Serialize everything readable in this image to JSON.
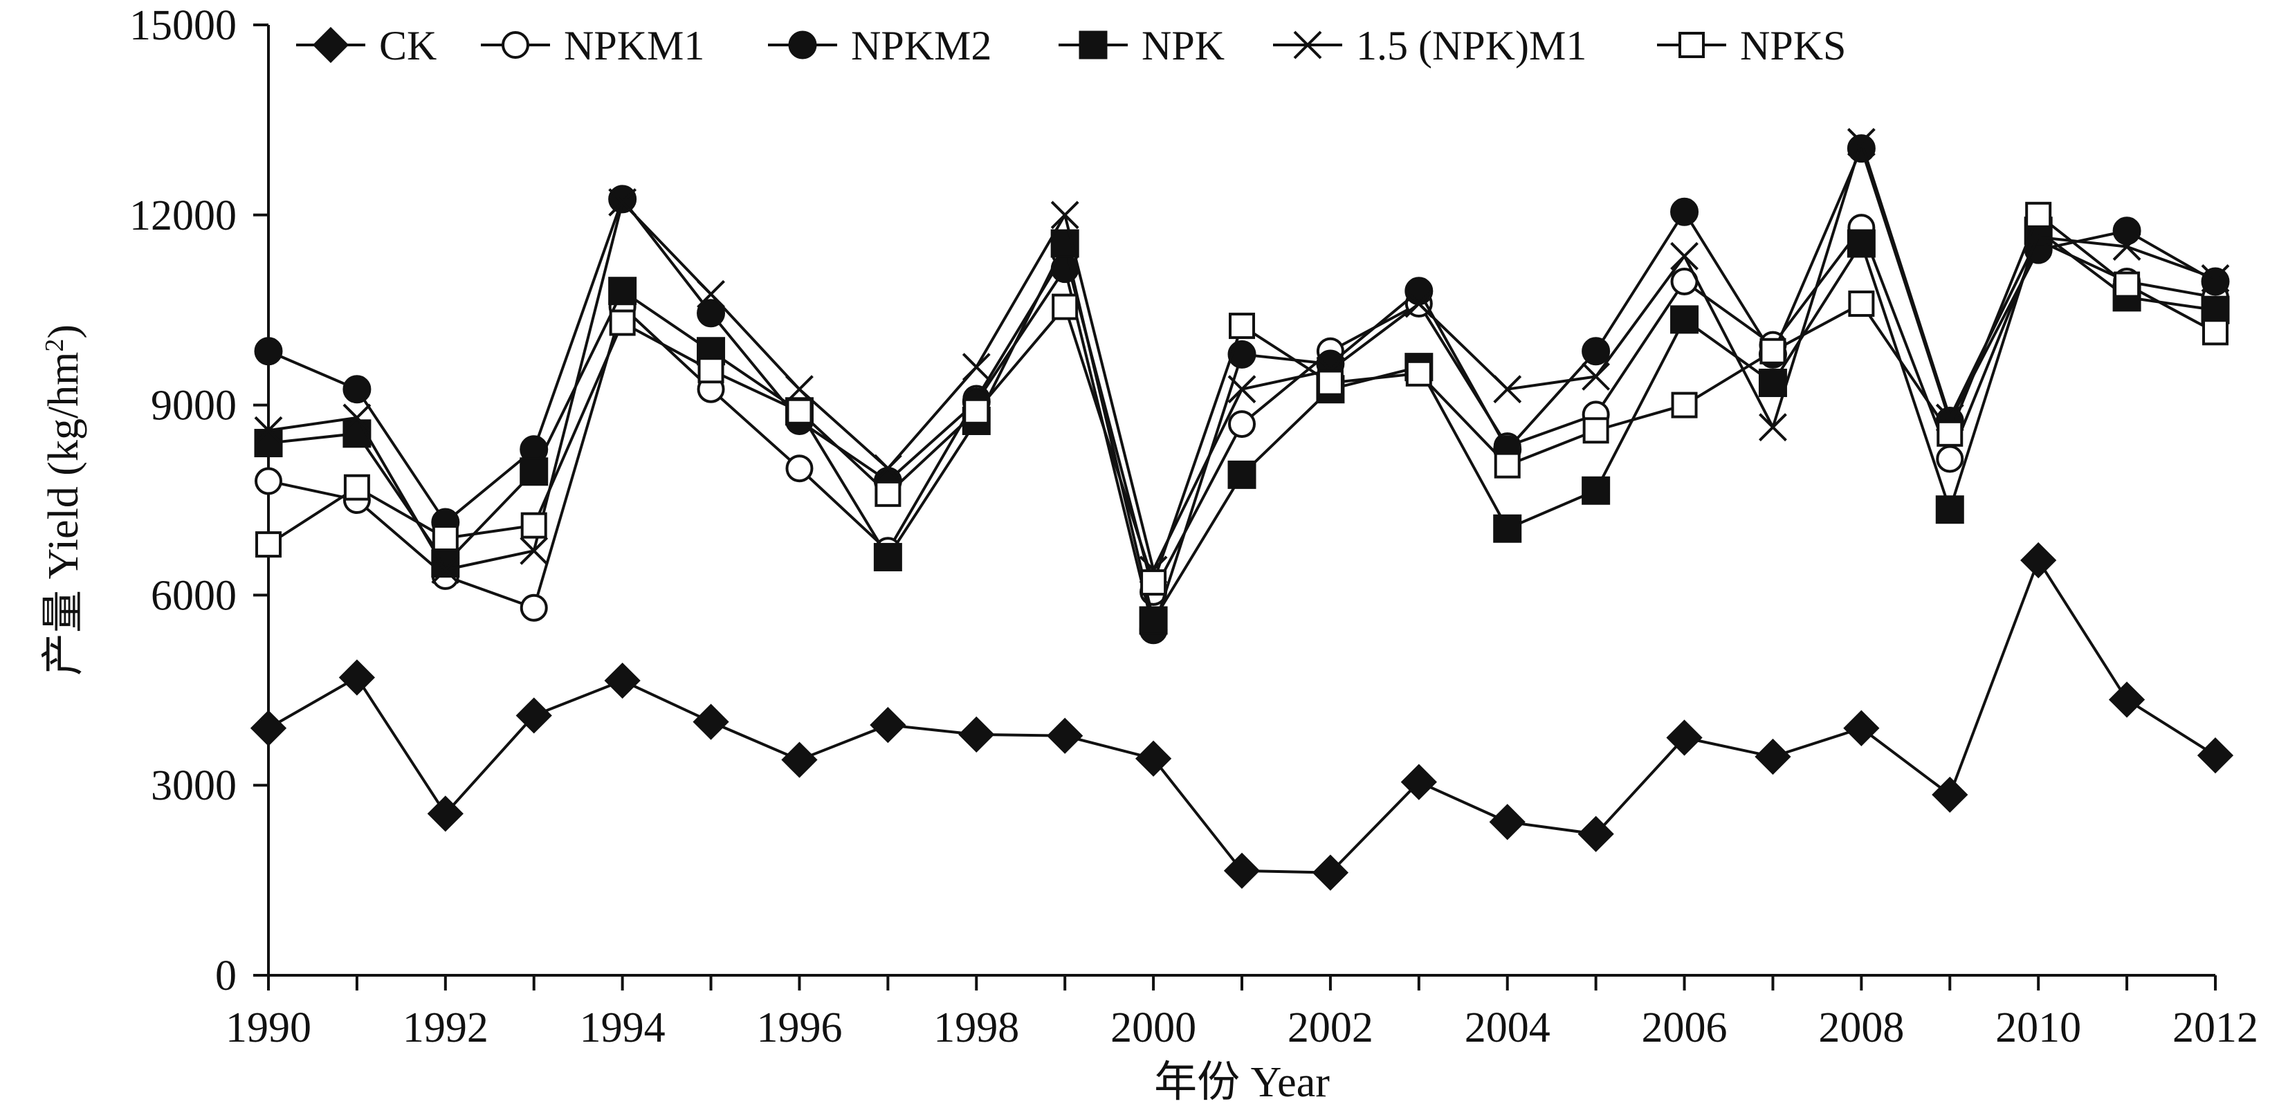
{
  "chart_data": {
    "type": "line",
    "title": "",
    "xlabel": "年份 Year",
    "ylabel": "产量 Yield (kg/hm²)",
    "ylabel_parts": {
      "main": "产量 Yield (kg/hm",
      "sup": "2",
      "close": ")"
    },
    "xlim": [
      1990,
      2012
    ],
    "ylim": [
      0,
      15000
    ],
    "xticks": [
      1990,
      1992,
      1994,
      1996,
      1998,
      2000,
      2002,
      2004,
      2006,
      2008,
      2010,
      2012
    ],
    "xtick_labels": [
      "1990",
      "1992",
      "1994",
      "1996",
      "1998",
      "2000",
      "2002",
      "2004",
      "2006",
      "2008",
      "2010",
      "2012"
    ],
    "yticks": [
      0,
      3000,
      6000,
      9000,
      12000,
      15000
    ],
    "ytick_labels": [
      "0",
      "3000",
      "6000",
      "9000",
      "12000",
      "15000"
    ],
    "grid": false,
    "legend_position": "top",
    "x": [
      1990,
      1991,
      1992,
      1993,
      1994,
      1995,
      1996,
      1997,
      1998,
      1999,
      2000,
      2001,
      2002,
      2003,
      2004,
      2005,
      2006,
      2007,
      2008,
      2009,
      2010,
      2011,
      2012
    ],
    "series": [
      {
        "name": "CK",
        "marker": "diamond-filled",
        "values": [
          3900,
          4700,
          2550,
          4100,
          4650,
          4000,
          3400,
          3950,
          3800,
          3780,
          3420,
          1650,
          1620,
          3050,
          2420,
          2230,
          3750,
          3450,
          3900,
          2850,
          6550,
          4350,
          3470
        ]
      },
      {
        "name": "NPKM1",
        "marker": "circle-open",
        "values": [
          7800,
          7500,
          6300,
          5800,
          10550,
          9250,
          8000,
          6700,
          9100,
          11400,
          6050,
          8700,
          9850,
          10600,
          8350,
          8850,
          10950,
          9950,
          11800,
          8150,
          11600,
          10950,
          10700
        ]
      },
      {
        "name": "NPKM2",
        "marker": "circle-filled",
        "values": [
          9850,
          9250,
          7150,
          8300,
          12250,
          10450,
          8750,
          7800,
          9050,
          11150,
          5450,
          9800,
          9650,
          10800,
          8300,
          9850,
          12050,
          9800,
          13050,
          8750,
          11450,
          11750,
          10950
        ]
      },
      {
        "name": "NPK",
        "marker": "square-filled",
        "values": [
          8400,
          8550,
          6500,
          7950,
          10800,
          9850,
          8900,
          6600,
          8750,
          11550,
          5600,
          7900,
          9250,
          9600,
          7050,
          7650,
          10350,
          9350,
          11550,
          7350,
          11750,
          10700,
          10500
        ]
      },
      {
        "name": "1.5 (NPK)M1",
        "marker": "x",
        "values": [
          8600,
          8800,
          6400,
          6700,
          12200,
          10750,
          9250,
          8000,
          9600,
          12000,
          6400,
          9250,
          9550,
          10600,
          9250,
          9450,
          11350,
          8650,
          13150,
          8800,
          11650,
          11500,
          11000
        ]
      },
      {
        "name": "NPKS",
        "marker": "square-open",
        "values": [
          6800,
          7700,
          6900,
          7100,
          10300,
          9550,
          8900,
          7600,
          8900,
          10550,
          6200,
          10250,
          9350,
          9500,
          8050,
          8600,
          9000,
          9850,
          10600,
          8550,
          12000,
          10900,
          10150
        ]
      }
    ]
  }
}
